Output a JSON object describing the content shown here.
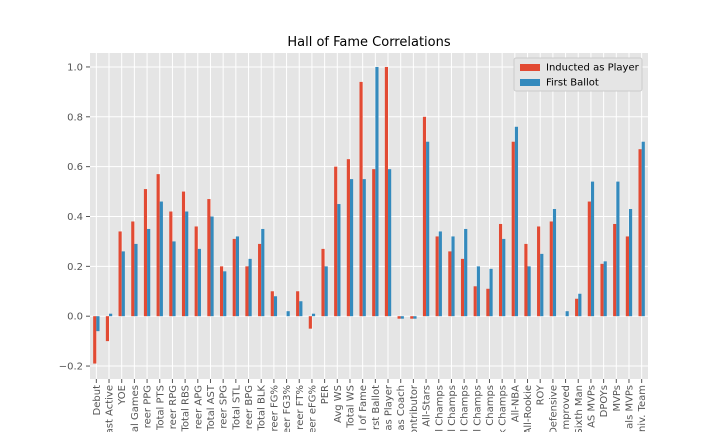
{
  "chart_data": {
    "type": "bar",
    "title": "Hall of Fame Correlations",
    "categories": [
      "Debut",
      "ast Active",
      "YOE",
      "al Games",
      "reer PPG",
      "Total PTS",
      "reer RPG",
      "Total RBS",
      "reer APG",
      "Total AST",
      "reer SPG",
      "Total STL",
      "reer BPG",
      "Total BLK",
      "reer FG%",
      "reer FG3%",
      "reer FT%",
      "reer eFG%",
      "PER",
      "Avg WS",
      "Total WS",
      "l of Fame",
      "rst Ballot",
      "as Player",
      "as Coach",
      "ontributor",
      "All-Stars",
      "l Champs",
      "l Champs",
      "l Champs",
      "l Champs",
      "Champs",
      "k Champs",
      "All-NBA",
      "All-Rookie",
      "ROY",
      "Defensive",
      "mproved",
      "Sixth Man",
      "AS MVPs",
      "DPOYs",
      "MVPs",
      "als MVPs",
      "niv. Team"
    ],
    "series": [
      {
        "name": "Inducted as Player",
        "color": "#E24A33",
        "values": [
          -0.19,
          -0.1,
          0.34,
          0.38,
          0.51,
          0.57,
          0.42,
          0.5,
          0.36,
          0.47,
          0.2,
          0.31,
          0.2,
          0.29,
          0.1,
          0.0,
          0.1,
          -0.05,
          0.27,
          0.6,
          0.63,
          0.94,
          0.59,
          1.0,
          -0.01,
          -0.01,
          0.8,
          0.32,
          0.26,
          0.23,
          0.12,
          0.11,
          0.37,
          0.7,
          0.29,
          0.36,
          0.38,
          0.0,
          0.07,
          0.46,
          0.21,
          0.37,
          0.32,
          0.67
        ]
      },
      {
        "name": "First Ballot",
        "color": "#348ABD",
        "values": [
          -0.06,
          0.01,
          0.26,
          0.29,
          0.35,
          0.46,
          0.3,
          0.42,
          0.27,
          0.4,
          0.18,
          0.32,
          0.23,
          0.35,
          0.08,
          0.02,
          0.06,
          0.01,
          0.2,
          0.45,
          0.55,
          0.55,
          1.0,
          0.59,
          -0.01,
          -0.01,
          0.7,
          0.34,
          0.32,
          0.35,
          0.2,
          0.19,
          0.31,
          0.76,
          0.2,
          0.25,
          0.43,
          0.02,
          0.09,
          0.54,
          0.22,
          0.54,
          0.43,
          0.7
        ]
      }
    ],
    "ylim": [
      -0.252,
      1.056
    ],
    "yticks": [
      {
        "value": -0.2,
        "label": "−0.2"
      },
      {
        "value": 0,
        "label": "0.0"
      },
      0.2,
      0.4,
      0.6,
      0.8,
      {
        "value": 1,
        "label": "1.0"
      }
    ],
    "grid": true,
    "legend": "upper right"
  }
}
